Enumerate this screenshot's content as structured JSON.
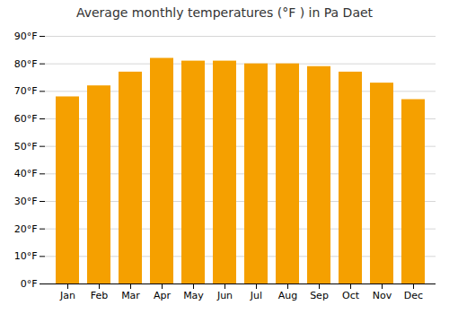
{
  "chart_data": {
    "type": "bar",
    "title": "Average monthly temperatures (°F ) in Pa Daet",
    "categories": [
      "Jan",
      "Feb",
      "Mar",
      "Apr",
      "May",
      "Jun",
      "Jul",
      "Aug",
      "Sep",
      "Oct",
      "Nov",
      "Dec"
    ],
    "values": [
      68,
      72,
      77,
      82,
      81,
      81,
      80,
      80,
      79,
      77,
      73,
      67
    ],
    "color": "#F5A000",
    "ylim": [
      0,
      90
    ],
    "yticks": [
      {
        "value": 0,
        "label": "0°F"
      },
      {
        "value": 10,
        "label": "10°F"
      },
      {
        "value": 20,
        "label": "20°F"
      },
      {
        "value": 30,
        "label": "30°F"
      },
      {
        "value": 40,
        "label": "40°F"
      },
      {
        "value": 50,
        "label": "50°F"
      },
      {
        "value": 60,
        "label": "60°F"
      },
      {
        "value": 70,
        "label": "70°F"
      },
      {
        "value": 80,
        "label": "80°F"
      },
      {
        "value": 90,
        "label": "90°F"
      }
    ],
    "grid": true
  }
}
